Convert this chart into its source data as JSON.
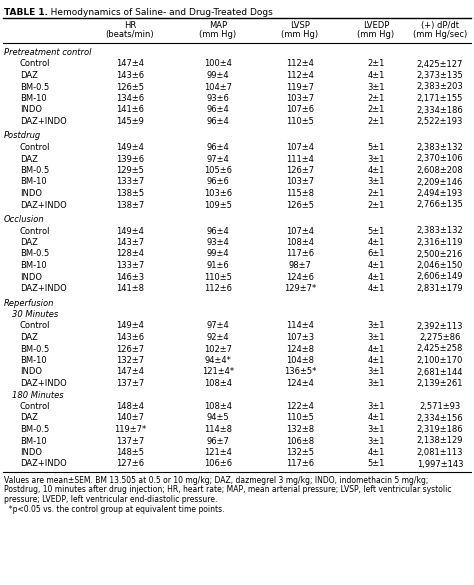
{
  "title_bold": "TABLE 1.",
  "title_rest": "   Hemodynamics of Saline- and Drug-Treated Dogs",
  "col_headers": [
    "",
    "HR\n(beats/min)",
    "MAP\n(mm Hg)",
    "LVSP\n(mm Hg)",
    "LVEDP\n(mm Hg)",
    "(+) dP/dt\n(mm Hg/sec)"
  ],
  "sections": [
    {
      "section_label": "Pretreatment control",
      "rows": [
        [
          "Control",
          "147±4",
          "100±4",
          "112±4",
          "2±1",
          "2,425±127"
        ],
        [
          "DAZ",
          "143±6",
          "99±4",
          "112±4",
          "4±1",
          "2,373±135"
        ],
        [
          "BM-0.5",
          "126±5",
          "104±7",
          "119±7",
          "3±1",
          "2,383±203"
        ],
        [
          "BM-10",
          "134±6",
          "93±6",
          "103±7",
          "2±1",
          "2,171±155"
        ],
        [
          "INDO",
          "141±6",
          "96±4",
          "107±6",
          "2±1",
          "2,334±186"
        ],
        [
          "DAZ+INDO",
          "145±9",
          "96±4",
          "110±5",
          "2±1",
          "2,522±193"
        ]
      ]
    },
    {
      "section_label": "Postdrug",
      "rows": [
        [
          "Control",
          "149±4",
          "96±4",
          "107±4",
          "5±1",
          "2,383±132"
        ],
        [
          "DAZ",
          "139±6",
          "97±4",
          "111±4",
          "3±1",
          "2,370±106"
        ],
        [
          "BM-0.5",
          "129±5",
          "105±6",
          "126±7",
          "4±1",
          "2,608±208"
        ],
        [
          "BM-10",
          "133±7",
          "96±6",
          "103±7",
          "3±1",
          "2,209±146"
        ],
        [
          "INDO",
          "138±5",
          "103±6",
          "115±8",
          "2±1",
          "2,494±193"
        ],
        [
          "DAZ+INDO",
          "138±7",
          "109±5",
          "126±5",
          "2±1",
          "2,766±135"
        ]
      ]
    },
    {
      "section_label": "Occlusion",
      "rows": [
        [
          "Control",
          "149±4",
          "96±4",
          "107±4",
          "5±1",
          "2,383±132"
        ],
        [
          "DAZ",
          "143±7",
          "93±4",
          "108±4",
          "4±1",
          "2,316±119"
        ],
        [
          "BM-0.5",
          "128±4",
          "99±4",
          "117±6",
          "6±1",
          "2,500±216"
        ],
        [
          "BM-10",
          "133±7",
          "91±6",
          "98±7",
          "4±1",
          "2,046±150"
        ],
        [
          "INDO",
          "146±3",
          "110±5",
          "124±6",
          "4±1",
          "2,606±149"
        ],
        [
          "DAZ+INDO",
          "141±8",
          "112±6",
          "129±7*",
          "4±1",
          "2,831±179"
        ]
      ]
    },
    {
      "section_label": "Reperfusion",
      "subsections": [
        {
          "sub_label": "30 Minutes",
          "rows": [
            [
              "Control",
              "149±4",
              "97±4",
              "114±4",
              "3±1",
              "2,392±113"
            ],
            [
              "DAZ",
              "143±6",
              "92±4",
              "107±3",
              "3±1",
              "2,275±86"
            ],
            [
              "BM-0.5",
              "126±7",
              "102±7",
              "124±8",
              "4±1",
              "2,425±258"
            ],
            [
              "BM-10",
              "132±7",
              "94±4*",
              "104±8",
              "4±1",
              "2,100±170"
            ],
            [
              "INDO",
              "147±4",
              "121±4*",
              "136±5*",
              "3±1",
              "2,681±144"
            ],
            [
              "DAZ+INDO",
              "137±7",
              "108±4",
              "124±4",
              "3±1",
              "2,139±261"
            ]
          ]
        },
        {
          "sub_label": "180 Minutes",
          "rows": [
            [
              "Control",
              "148±4",
              "108±4",
              "122±4",
              "3±1",
              "2,571±93"
            ],
            [
              "DAZ",
              "140±7",
              "94±5",
              "110±5",
              "4±1",
              "2,334±156"
            ],
            [
              "BM-0.5",
              "119±7*",
              "114±8",
              "132±8",
              "3±1",
              "2,319±186"
            ],
            [
              "BM-10",
              "137±7",
              "96±7",
              "106±8",
              "3±1",
              "2,138±129"
            ],
            [
              "INDO",
              "148±5",
              "121±4",
              "132±5",
              "4±1",
              "2,081±113"
            ],
            [
              "DAZ+INDO",
              "127±6",
              "106±6",
              "117±6",
              "5±1",
              "1,997±143"
            ]
          ]
        }
      ]
    }
  ],
  "footnote1": "Values are mean±SEM. BM 13.505 at 0.5 or 10 mg/kg; DAZ, dazmegrel 3 mg/kg; INDO, indomethacin 5 mg/kg;",
  "footnote2": "Postdrug, 10 minutes after drug injection; HR, heart rate; MAP, mean arterial pressure; LVSP, left ventricular systolic",
  "footnote3": "pressure; LVEDP, left ventricular end-diastolic pressure.",
  "footnote4": "  *p<0.05 vs. the control group at equivalent time points."
}
